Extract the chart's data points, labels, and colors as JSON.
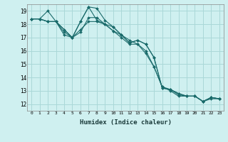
{
  "background_color": "#cff0f0",
  "grid_color": "#aad8d8",
  "line_color": "#1a6b6b",
  "xlabel": "Humidex (Indice chaleur)",
  "xlim": [
    -0.5,
    23.5
  ],
  "ylim": [
    11.5,
    19.5
  ],
  "xticks": [
    0,
    1,
    2,
    3,
    4,
    5,
    6,
    7,
    8,
    9,
    10,
    11,
    12,
    13,
    14,
    15,
    16,
    17,
    18,
    19,
    20,
    21,
    22,
    23
  ],
  "yticks": [
    12,
    13,
    14,
    15,
    16,
    17,
    18,
    19
  ],
  "series": [
    {
      "x": [
        0,
        1,
        2,
        3,
        4,
        5,
        6,
        7,
        8,
        9,
        10,
        11,
        12,
        13,
        14,
        15,
        16,
        17,
        18,
        19,
        20,
        21,
        22,
        23
      ],
      "y": [
        18.4,
        18.4,
        19.0,
        18.2,
        17.4,
        17.0,
        18.2,
        19.3,
        19.2,
        18.3,
        17.8,
        17.2,
        16.6,
        16.8,
        16.5,
        15.5,
        13.2,
        13.1,
        12.8,
        12.6,
        12.6,
        12.2,
        12.5,
        12.4
      ]
    },
    {
      "x": [
        0,
        1,
        2,
        3,
        4,
        5,
        6,
        7,
        8,
        9,
        10,
        11,
        12,
        13,
        14,
        15,
        16,
        17,
        18,
        19,
        20,
        21,
        22,
        23
      ],
      "y": [
        18.4,
        18.4,
        18.2,
        18.2,
        17.6,
        17.0,
        17.4,
        18.5,
        18.5,
        18.0,
        17.5,
        17.2,
        16.8,
        16.5,
        16.0,
        14.8,
        13.3,
        13.1,
        12.7,
        12.6,
        12.6,
        12.2,
        12.5,
        12.4
      ]
    },
    {
      "x": [
        0,
        1,
        2,
        3,
        5,
        6,
        7,
        8,
        9,
        10,
        11,
        12,
        13,
        14,
        15,
        16,
        17,
        18,
        19,
        20,
        21,
        22,
        23
      ],
      "y": [
        18.4,
        18.4,
        18.2,
        18.2,
        17.0,
        18.2,
        19.3,
        18.3,
        18.0,
        17.8,
        17.2,
        16.6,
        16.8,
        16.5,
        15.5,
        13.2,
        13.1,
        12.8,
        12.6,
        12.6,
        12.2,
        12.5,
        12.4
      ]
    },
    {
      "x": [
        0,
        1,
        2,
        3,
        4,
        5,
        6,
        7,
        8,
        9,
        10,
        11,
        12,
        13,
        14,
        15,
        16,
        17,
        18,
        19,
        20,
        21,
        22,
        23
      ],
      "y": [
        18.4,
        18.4,
        18.2,
        18.2,
        17.2,
        17.0,
        17.6,
        18.2,
        18.2,
        18.0,
        17.5,
        17.0,
        16.5,
        16.5,
        15.8,
        14.8,
        13.3,
        13.0,
        12.6,
        12.6,
        12.6,
        12.2,
        12.4,
        12.4
      ]
    }
  ]
}
